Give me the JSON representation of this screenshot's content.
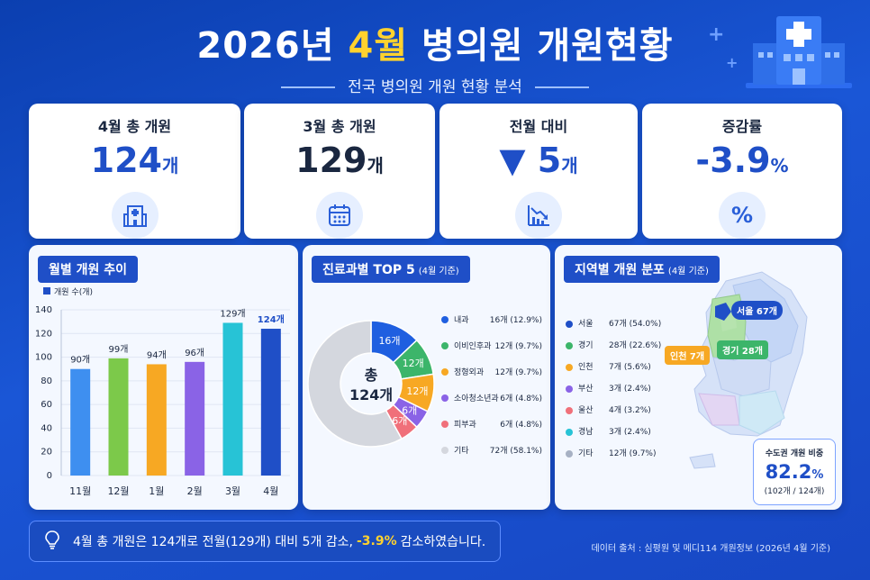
{
  "header": {
    "title_prefix": "2026년 ",
    "title_highlight": "4월",
    "title_suffix": " 병의원 개원현황",
    "subtitle": "전국 병의원 개원 현황 분석"
  },
  "kpis": [
    {
      "label": "4월 총 개원",
      "value": "124",
      "unit": "개",
      "color": "#1f4fc7",
      "icon": "hospital-icon"
    },
    {
      "label": "3월 총 개원",
      "value": "129",
      "unit": "개",
      "color": "#1a2740",
      "icon": "calendar-icon"
    },
    {
      "label": "전월 대비",
      "value": "▼ 5",
      "unit": "개",
      "color": "#1f4fc7",
      "icon": "decline-chart-icon"
    },
    {
      "label": "증감률",
      "value": "-3.9",
      "unit": "%",
      "color": "#1f4fc7",
      "icon": "percent-icon",
      "icon_text": "%"
    }
  ],
  "monthly_panel": {
    "title": "월별 개원 추이",
    "legend": "개원 수(개)"
  },
  "dept_panel": {
    "title": "진료과별 TOP 5",
    "title_note": "(4월 기준)",
    "center_label_1": "총",
    "center_label_2": "124개"
  },
  "region_panel": {
    "title": "지역별 개원 분포",
    "title_note": "(4월 기준)",
    "map_labels": {
      "seoul": "서울 67개",
      "gyeonggi": "경기 28개",
      "incheon": "인천 7개"
    },
    "capital_box": {
      "title": "수도권 개원 비중",
      "value": "82.2",
      "unit": "%",
      "detail": "(102개 / 124개)"
    }
  },
  "chart_data": [
    {
      "type": "bar",
      "title": "월별 개원 추이",
      "categories": [
        "11월",
        "12월",
        "1월",
        "2월",
        "3월",
        "4월"
      ],
      "series": [
        {
          "name": "개원 수(개)",
          "values": [
            90,
            99,
            94,
            96,
            129,
            124
          ]
        }
      ],
      "data_labels": [
        "90개",
        "99개",
        "94개",
        "96개",
        "129개",
        "124개"
      ],
      "colors": [
        "#3e8ff0",
        "#7cc94a",
        "#f7a823",
        "#8a63e6",
        "#27c3d6",
        "#1f4fc7"
      ],
      "ylim": [
        0,
        140
      ],
      "yticks": [
        "0",
        "20",
        "40",
        "60",
        "80",
        "100",
        "120",
        "140"
      ],
      "grid": true
    },
    {
      "type": "pie",
      "title": "진료과별 TOP 5",
      "labels": [
        "내과",
        "이비인후과",
        "정형외과",
        "소아청소년과",
        "피부과",
        "기타"
      ],
      "values": [
        16,
        12,
        12,
        6,
        6,
        72
      ],
      "slice_labels": [
        "16개",
        "12개",
        "12개",
        "6개",
        "6개",
        ""
      ],
      "legend_values": [
        "16개 (12.9%)",
        "12개 (9.7%)",
        "12개 (9.7%)",
        "6개 (4.8%)",
        "6개 (4.8%)",
        "72개 (58.1%)"
      ],
      "colors": [
        "#1f5fe0",
        "#3cb56a",
        "#f7a823",
        "#8a63e6",
        "#f0707a",
        "#d4d7de"
      ]
    }
  ],
  "regions": [
    {
      "name": "서울",
      "value": "67개 (54.0%)",
      "color": "#1f4fc7"
    },
    {
      "name": "경기",
      "value": "28개 (22.6%)",
      "color": "#3cb56a"
    },
    {
      "name": "인천",
      "value": "7개 (5.6%)",
      "color": "#f7a823"
    },
    {
      "name": "부산",
      "value": "3개 (2.4%)",
      "color": "#8a63e6"
    },
    {
      "name": "울산",
      "value": "4개 (3.2%)",
      "color": "#f0707a"
    },
    {
      "name": "경남",
      "value": "3개 (2.4%)",
      "color": "#27c3d6"
    },
    {
      "name": "기타",
      "value": "12개 (9.7%)",
      "color": "#a7b1c4"
    }
  ],
  "footer": {
    "summary_prefix": "4월 총 개원은 124개로 전월(129개) 대비 5개 감소,",
    "summary_highlight": "-3.9%",
    "summary_suffix": "감소하였습니다.",
    "source": "데이터 출처 : 심평원 및 메디114 개원정보 (2026년 4월 기준)"
  }
}
